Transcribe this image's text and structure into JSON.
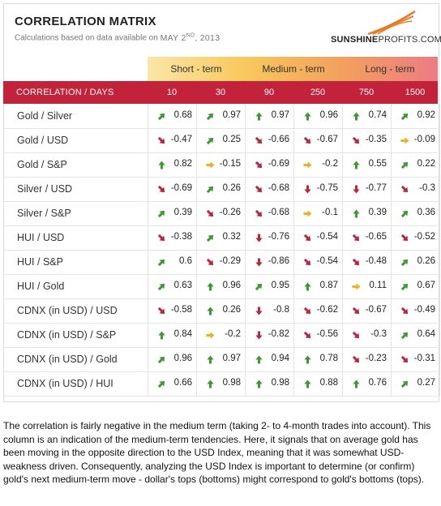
{
  "header": {
    "title": "CORRELATION MATRIX",
    "subtitle_prefix": "Calculations based on data available on",
    "date_month_day": "MAY 2",
    "date_suffix": "ND",
    "date_year": ", 2013",
    "brand_bold": "SUNSHINE",
    "brand_rest": "PROFITS.COM"
  },
  "colors": {
    "header_red": "#c2233a",
    "arrow_up": "#3a9a2e",
    "arrow_down": "#c0203a",
    "arrow_flat": "#f0b020"
  },
  "periods": {
    "short": "Short - term",
    "medium": "Medium - term",
    "long": "Long - term"
  },
  "chart_data": {
    "type": "table",
    "title": "CORRELATION MATRIX",
    "row_header": "CORRELATION / DAYS",
    "columns": [
      "10",
      "30",
      "90",
      "250",
      "750",
      "1500"
    ],
    "rows": [
      {
        "name": "Gold / Silver",
        "values": [
          0.68,
          0.97,
          0.97,
          0.96,
          0.74,
          0.92
        ],
        "display": [
          "0.68",
          "0.97",
          "0.97",
          "0.96",
          "0.74",
          "0.92"
        ],
        "arrows": [
          "up-right",
          "up-right",
          "up",
          "up",
          "up",
          "up-right"
        ]
      },
      {
        "name": "Gold / USD",
        "values": [
          -0.47,
          0.25,
          -0.66,
          -0.67,
          -0.35,
          -0.09
        ],
        "display": [
          "-0.47",
          "0.25",
          "-0.66",
          "-0.67",
          "-0.35",
          "-0.09"
        ],
        "arrows": [
          "down-right",
          "up-right",
          "down-right",
          "down-right",
          "down-right",
          "right"
        ]
      },
      {
        "name": "Gold / S&P",
        "values": [
          0.82,
          -0.15,
          -0.69,
          -0.2,
          0.55,
          0.22
        ],
        "display": [
          "0.82",
          "-0.15",
          "-0.69",
          "-0.2",
          "0.55",
          "0.22"
        ],
        "arrows": [
          "up",
          "right",
          "down-right",
          "right",
          "up",
          "up-right"
        ]
      },
      {
        "name": "Silver / USD",
        "values": [
          -0.69,
          0.26,
          -0.68,
          -0.75,
          -0.77,
          -0.3
        ],
        "display": [
          "-0.69",
          "0.26",
          "-0.68",
          "-0.75",
          "-0.77",
          "-0.3"
        ],
        "arrows": [
          "down-right",
          "up-right",
          "down-right",
          "down",
          "down",
          "down-right"
        ]
      },
      {
        "name": "Silver / S&P",
        "values": [
          0.39,
          -0.26,
          -0.68,
          -0.1,
          0.39,
          0.36
        ],
        "display": [
          "0.39",
          "-0.26",
          "-0.68",
          "-0.1",
          "0.39",
          "0.36"
        ],
        "arrows": [
          "up-right",
          "down-right",
          "down-right",
          "right",
          "up",
          "up-right"
        ]
      },
      {
        "name": "HUI / USD",
        "values": [
          -0.38,
          0.32,
          -0.76,
          -0.54,
          -0.65,
          -0.52
        ],
        "display": [
          "-0.38",
          "0.32",
          "-0.76",
          "-0.54",
          "-0.65",
          "-0.52"
        ],
        "arrows": [
          "down-right",
          "up-right",
          "down",
          "down-right",
          "down-right",
          "down-right"
        ]
      },
      {
        "name": "HUI / S&P",
        "values": [
          0.6,
          -0.29,
          -0.86,
          -0.54,
          -0.48,
          0.26
        ],
        "display": [
          "0.6",
          "-0.29",
          "-0.86",
          "-0.54",
          "-0.48",
          "0.26"
        ],
        "arrows": [
          "up-right",
          "down-right",
          "down",
          "down-right",
          "down-right",
          "up-right"
        ]
      },
      {
        "name": "HUI / Gold",
        "values": [
          0.63,
          0.96,
          0.95,
          0.87,
          0.11,
          0.67
        ],
        "display": [
          "0.63",
          "0.96",
          "0.95",
          "0.87",
          "0.11",
          "0.67"
        ],
        "arrows": [
          "up-right",
          "up",
          "up-right",
          "up",
          "right",
          "up-right"
        ]
      },
      {
        "name": "CDNX (in USD) / USD",
        "values": [
          -0.58,
          0.26,
          -0.8,
          -0.62,
          -0.67,
          -0.49
        ],
        "display": [
          "-0.58",
          "0.26",
          "-0.8",
          "-0.62",
          "-0.67",
          "-0.49"
        ],
        "arrows": [
          "down-right",
          "up",
          "down",
          "down-right",
          "down-right",
          "down-right"
        ]
      },
      {
        "name": "CDNX (in USD) / S&P",
        "values": [
          0.84,
          -0.2,
          -0.82,
          -0.56,
          -0.3,
          0.64
        ],
        "display": [
          "0.84",
          "-0.2",
          "-0.82",
          "-0.56",
          "-0.3",
          "0.64"
        ],
        "arrows": [
          "up",
          "right",
          "down",
          "down-right",
          "down-right",
          "up-right"
        ]
      },
      {
        "name": "CDNX (in USD) / Gold",
        "values": [
          0.96,
          0.97,
          0.94,
          0.78,
          -0.23,
          -0.31
        ],
        "display": [
          "0.96",
          "0.97",
          "0.94",
          "0.78",
          "-0.23",
          "-0.31"
        ],
        "arrows": [
          "up-right",
          "up",
          "up",
          "up",
          "down-right",
          "down-right"
        ]
      },
      {
        "name": "CDNX (in USD) / HUI",
        "values": [
          0.66,
          0.98,
          0.98,
          0.88,
          0.76,
          0.27
        ],
        "display": [
          "0.66",
          "0.98",
          "0.98",
          "0.88",
          "0.76",
          "0.27"
        ],
        "arrows": [
          "up-right",
          "up",
          "up",
          "up",
          "up",
          "up-right"
        ]
      }
    ]
  },
  "description": "The correlation is fairly negative in the medium term (taking 2- to 4-month trades into account). This column is an indication of the medium-term tendencies. Here, it signals that on average gold has been moving in the opposite direction to the USD Index, meaning that it was somewhat USD-weakness driven. Consequently, analyzing the USD Index is important to determine (or confirm) gold's next medium-term move - dollar's tops (bottoms) might correspond to gold's bottoms (tops)."
}
